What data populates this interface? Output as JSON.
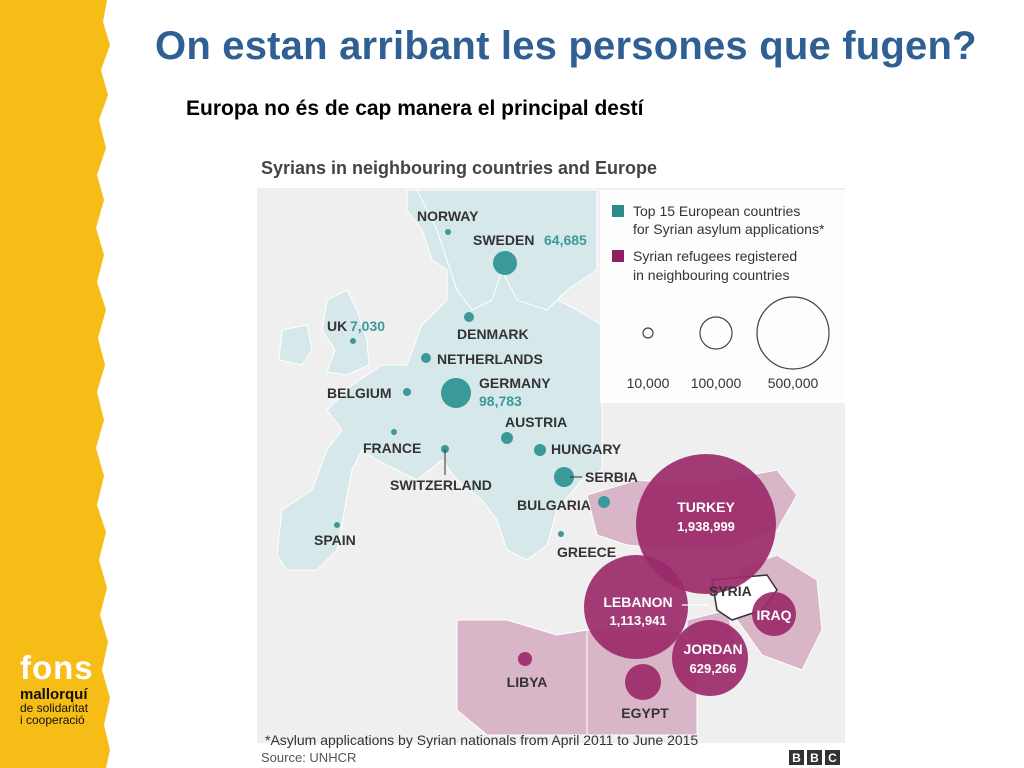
{
  "slide": {
    "title": "On estan arribant les persones que fugen?",
    "subtitle": "Europa no és de cap manera el principal destí"
  },
  "logo": {
    "word": "fons",
    "org": "mallorquí",
    "line1": "de solidaritat",
    "line2": "i cooperació"
  },
  "colors": {
    "title": "#2f5f93",
    "side_band": "#f6bd16",
    "europe_land": "#d6e8ea",
    "host_land": "#d9b6c7",
    "teal": "#3a9a9a",
    "purple": "#9b2a6a"
  },
  "map": {
    "title": "Syrians in neighbouring countries and Europe",
    "legend": {
      "teal_line1": "Top 15 European countries",
      "teal_line2": "for Syrian asylum applications*",
      "purple_line1": "Syrian refugees registered",
      "purple_line2": "in neighbouring countries",
      "scale": [
        "10,000",
        "100,000",
        "500,000"
      ]
    },
    "europe": [
      {
        "name": "NORWAY",
        "value": ""
      },
      {
        "name": "SWEDEN",
        "value": "64,685"
      },
      {
        "name": "DENMARK",
        "value": ""
      },
      {
        "name": "UK",
        "value": "7,030"
      },
      {
        "name": "NETHERLANDS",
        "value": ""
      },
      {
        "name": "BELGIUM",
        "value": ""
      },
      {
        "name": "GERMANY",
        "value": "98,783"
      },
      {
        "name": "AUSTRIA",
        "value": ""
      },
      {
        "name": "FRANCE",
        "value": ""
      },
      {
        "name": "HUNGARY",
        "value": ""
      },
      {
        "name": "SWITZERLAND",
        "value": ""
      },
      {
        "name": "SERBIA",
        "value": ""
      },
      {
        "name": "BULGARIA",
        "value": ""
      },
      {
        "name": "SPAIN",
        "value": ""
      },
      {
        "name": "GREECE",
        "value": ""
      }
    ],
    "neighbours": [
      {
        "name": "TURKEY",
        "value": "1,938,999"
      },
      {
        "name": "LEBANON",
        "value": "1,113,941"
      },
      {
        "name": "JORDAN",
        "value": "629,266"
      },
      {
        "name": "IRAQ",
        "value": ""
      },
      {
        "name": "EGYPT",
        "value": ""
      },
      {
        "name": "LIBYA",
        "value": ""
      }
    ],
    "syria_label": "SYRIA",
    "footnote": "*Asylum applications by Syrian nationals from April 2011 to June 2015",
    "source": "Source: UNHCR",
    "brand": [
      "B",
      "B",
      "C"
    ]
  }
}
